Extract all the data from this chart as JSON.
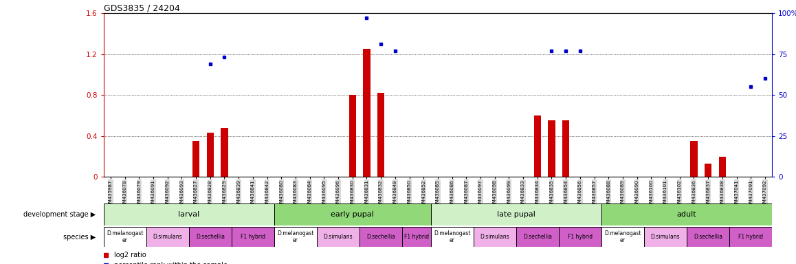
{
  "title": "GDS3835 / 24204",
  "samples": [
    "GSM435987",
    "GSM436078",
    "GSM436079",
    "GSM436091",
    "GSM436092",
    "GSM436093",
    "GSM436827",
    "GSM436828",
    "GSM436829",
    "GSM436839",
    "GSM436841",
    "GSM436842",
    "GSM436080",
    "GSM436083",
    "GSM436084",
    "GSM436095",
    "GSM436096",
    "GSM436830",
    "GSM436831",
    "GSM436832",
    "GSM436848",
    "GSM436850",
    "GSM436852",
    "GSM436085",
    "GSM436086",
    "GSM436087",
    "GSM436097",
    "GSM436098",
    "GSM436099",
    "GSM436833",
    "GSM436834",
    "GSM436835",
    "GSM436854",
    "GSM436856",
    "GSM436857",
    "GSM436088",
    "GSM436089",
    "GSM436090",
    "GSM436100",
    "GSM436101",
    "GSM436102",
    "GSM436836",
    "GSM436837",
    "GSM436838",
    "GSM437041",
    "GSM437091",
    "GSM437092"
  ],
  "log2_ratio": [
    0.0,
    0.0,
    0.0,
    0.0,
    0.0,
    0.0,
    0.35,
    0.43,
    0.48,
    0.0,
    0.0,
    0.0,
    0.0,
    0.0,
    0.0,
    0.0,
    0.0,
    0.8,
    1.25,
    0.82,
    0.0,
    0.0,
    0.0,
    0.0,
    0.0,
    0.0,
    0.0,
    0.0,
    0.0,
    0.0,
    0.6,
    0.55,
    0.55,
    0.0,
    0.0,
    0.0,
    0.0,
    0.0,
    0.0,
    0.0,
    0.0,
    0.35,
    0.13,
    0.2,
    0.0,
    0.0,
    0.0
  ],
  "percentile_vals": [
    null,
    null,
    null,
    null,
    null,
    null,
    null,
    69,
    73,
    null,
    null,
    null,
    null,
    null,
    null,
    null,
    null,
    null,
    97,
    81,
    77,
    null,
    null,
    null,
    null,
    null,
    null,
    null,
    null,
    null,
    null,
    77,
    77,
    77,
    null,
    null,
    null,
    null,
    null,
    null,
    null,
    null,
    null,
    null,
    null,
    55,
    60
  ],
  "dev_stage_labels": [
    "larval",
    "early pupal",
    "late pupal",
    "adult"
  ],
  "dev_stage_starts": [
    0,
    12,
    23,
    35
  ],
  "dev_stage_ends": [
    12,
    23,
    35,
    47
  ],
  "dev_stage_colors": [
    "#d0f0c8",
    "#90d878",
    "#d0f0c8",
    "#90d878"
  ],
  "species_info": [
    [
      0,
      3,
      "D.melanogast\ner",
      "#ffffff"
    ],
    [
      3,
      6,
      "D.simulans",
      "#f0b0e8"
    ],
    [
      6,
      9,
      "D.sechellia",
      "#d060c8"
    ],
    [
      9,
      12,
      "F1 hybrid",
      "#d060c8"
    ],
    [
      12,
      15,
      "D.melanogast\ner",
      "#ffffff"
    ],
    [
      15,
      18,
      "D.simulans",
      "#f0b0e8"
    ],
    [
      18,
      21,
      "D.sechellia",
      "#d060c8"
    ],
    [
      21,
      23,
      "F1 hybrid",
      "#d060c8"
    ],
    [
      23,
      26,
      "D.melanogast\ner",
      "#ffffff"
    ],
    [
      26,
      29,
      "D.simulans",
      "#f0b0e8"
    ],
    [
      29,
      32,
      "D.sechellia",
      "#d060c8"
    ],
    [
      32,
      35,
      "F1 hybrid",
      "#d060c8"
    ],
    [
      35,
      38,
      "D.melanogast\ner",
      "#ffffff"
    ],
    [
      38,
      41,
      "D.simulans",
      "#f0b0e8"
    ],
    [
      41,
      44,
      "D.sechellia",
      "#d060c8"
    ],
    [
      44,
      47,
      "F1 hybrid",
      "#d060c8"
    ]
  ],
  "left_axis_color": "#cc0000",
  "right_axis_color": "#0000cc",
  "ylim_left": [
    0,
    1.6
  ],
  "ylim_right": [
    0,
    100
  ],
  "yticks_left": [
    0,
    0.4,
    0.8,
    1.2,
    1.6
  ],
  "yticks_right": [
    0,
    25,
    50,
    75,
    100
  ],
  "bar_color": "#cc0000",
  "dot_color": "#0000cc",
  "tick_label_bg": "#d8d8d8"
}
